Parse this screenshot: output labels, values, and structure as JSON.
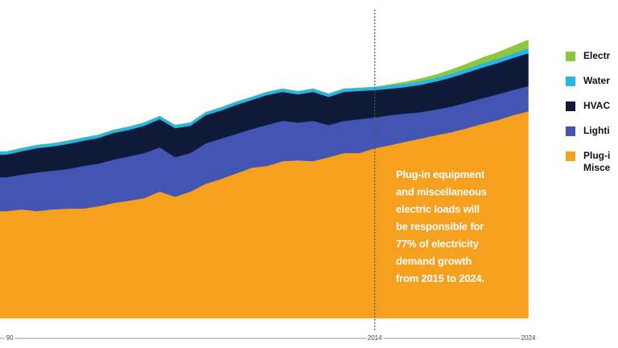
{
  "chart_data": {
    "type": "stacked-area",
    "x": [
      1990,
      1991,
      1992,
      1993,
      1994,
      1995,
      1996,
      1997,
      1998,
      1999,
      2000,
      2001,
      2002,
      2003,
      2004,
      2005,
      2006,
      2007,
      2008,
      2009,
      2010,
      2011,
      2012,
      2013,
      2014,
      2015,
      2016,
      2017,
      2018,
      2019,
      2020,
      2021,
      2022,
      2023,
      2024
    ],
    "series": [
      {
        "name": "Plug-i Misce",
        "color": "#f5a01e",
        "values": [
          38,
          38.6,
          38,
          38.6,
          38.9,
          38.9,
          39.7,
          40.9,
          41.7,
          42.6,
          44.9,
          43.1,
          44.9,
          47.7,
          49.4,
          51.4,
          53.4,
          54,
          55.7,
          56,
          55.7,
          57.1,
          58.6,
          58.6,
          60.3,
          61.4,
          62.6,
          63.7,
          64.9,
          66,
          67.4,
          68.9,
          70.3,
          72,
          73.4
        ]
      },
      {
        "name": "Lighti",
        "color": "#4255b3",
        "values": [
          12,
          12.3,
          13.7,
          13.7,
          14,
          15.1,
          15.1,
          15.4,
          15.7,
          16,
          15.7,
          14,
          13.7,
          14.3,
          14.3,
          14,
          13.7,
          14.6,
          14.3,
          13.4,
          14.3,
          11.4,
          11.4,
          12,
          10.9,
          10.6,
          10,
          9.4,
          9.1,
          9.1,
          9.1,
          9.1,
          9.1,
          8.9,
          8.9
        ]
      },
      {
        "name": "HVAC",
        "color": "#0e1a38",
        "values": [
          8,
          8.3,
          8.6,
          8.6,
          8.9,
          8.9,
          9.1,
          9.4,
          9.4,
          9.7,
          10,
          10.3,
          9.7,
          10,
          10,
          10.3,
          10.3,
          10.6,
          10.3,
          10,
          10.3,
          10,
          10.3,
          10,
          9.7,
          9.4,
          9.4,
          9.7,
          10,
          10.3,
          10.6,
          10.9,
          11.1,
          11.4,
          11.7
        ]
      },
      {
        "name": "Water",
        "color": "#27b4e6",
        "values": [
          1.1,
          1.1,
          1.1,
          1.1,
          1.1,
          1.1,
          1.1,
          1.1,
          1.1,
          1.1,
          1.1,
          1.1,
          1.1,
          1.1,
          1.1,
          1.1,
          1.1,
          1.1,
          1.1,
          1.1,
          1.1,
          1.1,
          1.1,
          1.1,
          1.1,
          1.2,
          1.2,
          1.3,
          1.3,
          1.4,
          1.4,
          1.5,
          1.5,
          1.6,
          1.7
        ]
      },
      {
        "name": "Electr",
        "color": "#8dc63f",
        "values": [
          0,
          0,
          0,
          0,
          0,
          0,
          0,
          0,
          0,
          0,
          0,
          0,
          0,
          0,
          0,
          0,
          0,
          0,
          0,
          0,
          0,
          0,
          0,
          0,
          0,
          0.3,
          0.6,
          0.9,
          1.1,
          1.4,
          1.7,
          2,
          2.3,
          2.6,
          3
        ]
      }
    ],
    "xlim": [
      1989.6,
      2024.6
    ],
    "ylim": [
      0,
      100
    ],
    "xticks": [
      {
        "value": 1990,
        "label": "90"
      },
      2014,
      2024
    ],
    "annotation": [
      "Plug-in equipment",
      "and miscellaneous",
      "electric loads will",
      "be responsible for",
      "77% of electricity",
      "demand growth",
      "from 2015 to 2024."
    ]
  }
}
